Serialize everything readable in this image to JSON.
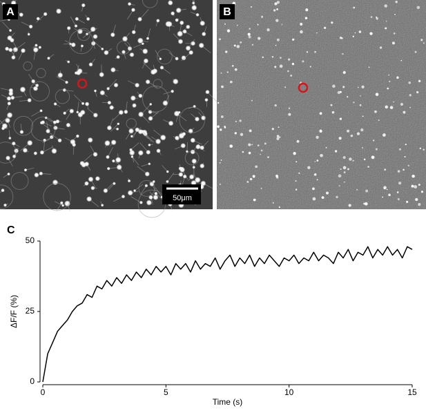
{
  "panels": {
    "a": {
      "label": "A",
      "scale_bar": "50μm"
    },
    "b": {
      "label": "B"
    },
    "c": {
      "label": "C"
    }
  },
  "chart_data": {
    "type": "line",
    "x_label": "Time (s)",
    "y_label": "ΔF/F (%)",
    "x": [
      0,
      0.2,
      0.4,
      0.6,
      0.8,
      1,
      1.2,
      1.4,
      1.6,
      1.8,
      2,
      2.2,
      2.4,
      2.6,
      2.8,
      3,
      3.2,
      3.4,
      3.6,
      3.8,
      4,
      4.2,
      4.4,
      4.6,
      4.8,
      5,
      5.2,
      5.4,
      5.6,
      5.8,
      6,
      6.2,
      6.4,
      6.6,
      6.8,
      7,
      7.2,
      7.4,
      7.6,
      7.8,
      8,
      8.2,
      8.4,
      8.6,
      8.8,
      9,
      9.2,
      9.4,
      9.6,
      9.8,
      10,
      10.2,
      10.4,
      10.6,
      10.8,
      11,
      11.2,
      11.4,
      11.6,
      11.8,
      12,
      12.2,
      12.4,
      12.6,
      12.8,
      13,
      13.2,
      13.4,
      13.6,
      13.8,
      14,
      14.2,
      14.4,
      14.6,
      14.8,
      15
    ],
    "values": [
      0,
      10,
      14,
      18,
      20,
      22,
      25,
      27,
      28,
      31,
      30,
      34,
      33,
      36,
      34,
      37,
      35,
      38,
      36,
      39,
      37,
      40,
      38,
      41,
      39,
      41,
      38,
      42,
      40,
      42,
      39,
      43,
      40,
      42,
      41,
      44,
      40,
      43,
      45,
      41,
      44,
      42,
      45,
      41,
      44,
      42,
      45,
      43,
      41,
      44,
      43,
      45,
      42,
      44,
      43,
      46,
      43,
      45,
      44,
      42,
      46,
      44,
      47,
      43,
      46,
      45,
      48,
      44,
      47,
      45,
      48,
      45,
      47,
      44,
      48,
      47
    ],
    "color": "#000000",
    "xlim": [
      0,
      15
    ],
    "xticks": [
      0,
      5,
      10,
      15
    ],
    "ylim": [
      0,
      50
    ],
    "yticks": [
      0,
      25,
      50
    ]
  }
}
